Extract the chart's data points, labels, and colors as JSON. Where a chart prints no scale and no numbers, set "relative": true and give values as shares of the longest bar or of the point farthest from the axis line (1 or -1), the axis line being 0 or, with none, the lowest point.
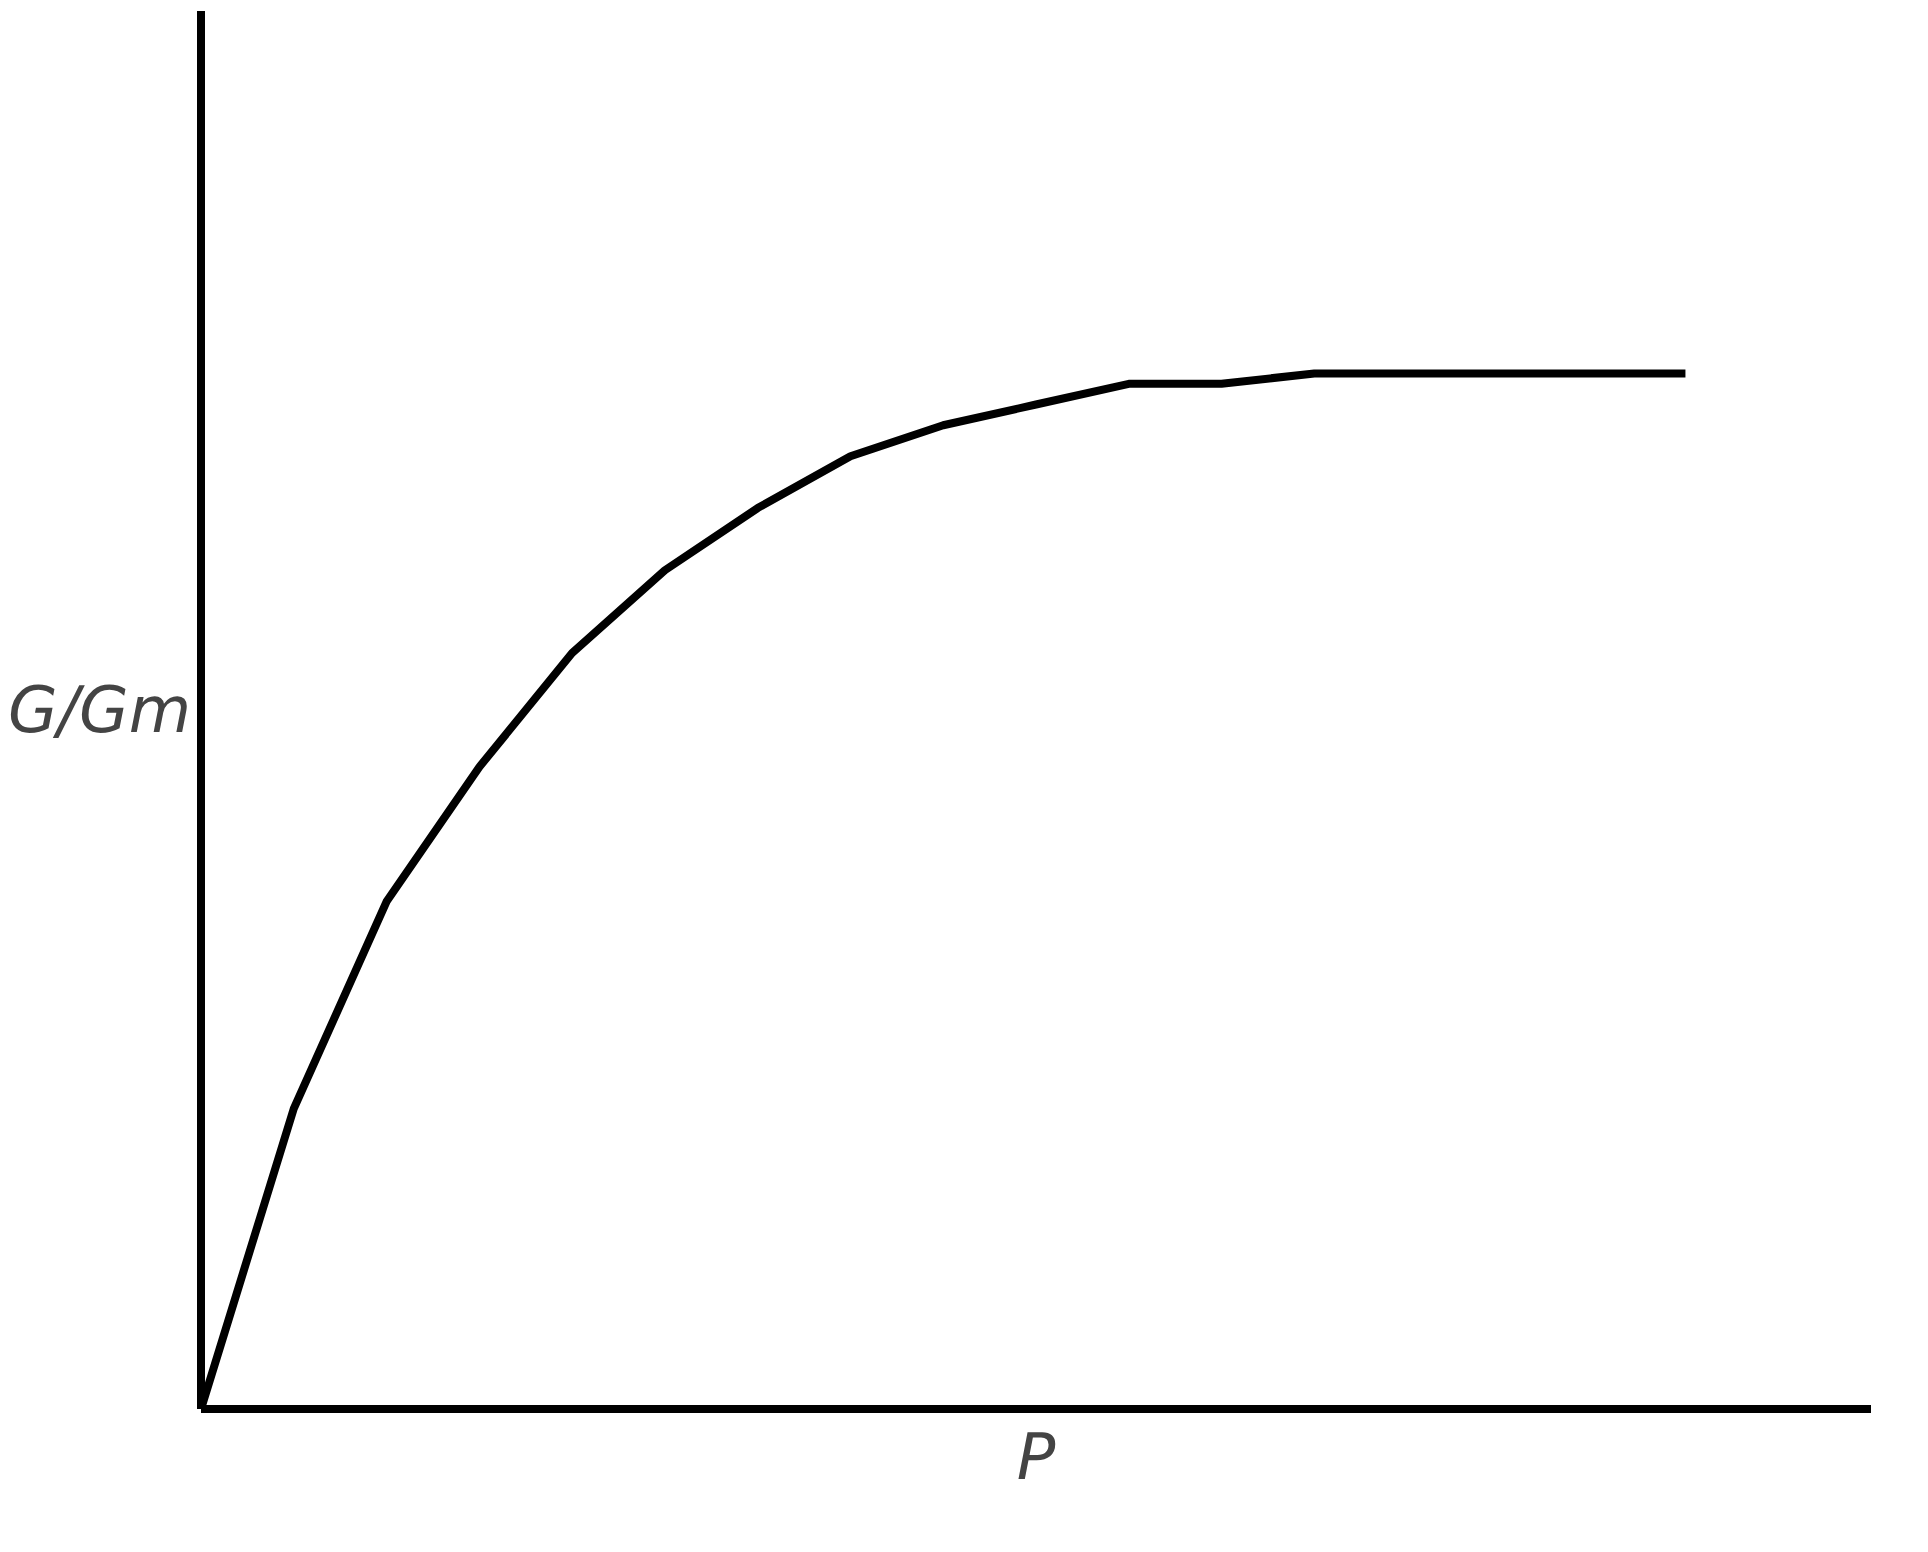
{
  "chart_data": {
    "type": "line",
    "relative": true,
    "xlabel": "P",
    "ylabel": "G/Gm",
    "categories": [
      null,
      null,
      null,
      null,
      null,
      null,
      null,
      null,
      null,
      null,
      null,
      null,
      null,
      null,
      null,
      null,
      null
    ],
    "series": [
      {
        "color": "#000000",
        "values": [
          0,
          0.29,
          0.49,
          0.62,
          0.73,
          0.81,
          0.87,
          0.92,
          0.95,
          0.97,
          0.99,
          0.99,
          1,
          1,
          1,
          1,
          1
        ]
      }
    ],
    "line_style": "solid",
    "marker": "none"
  }
}
